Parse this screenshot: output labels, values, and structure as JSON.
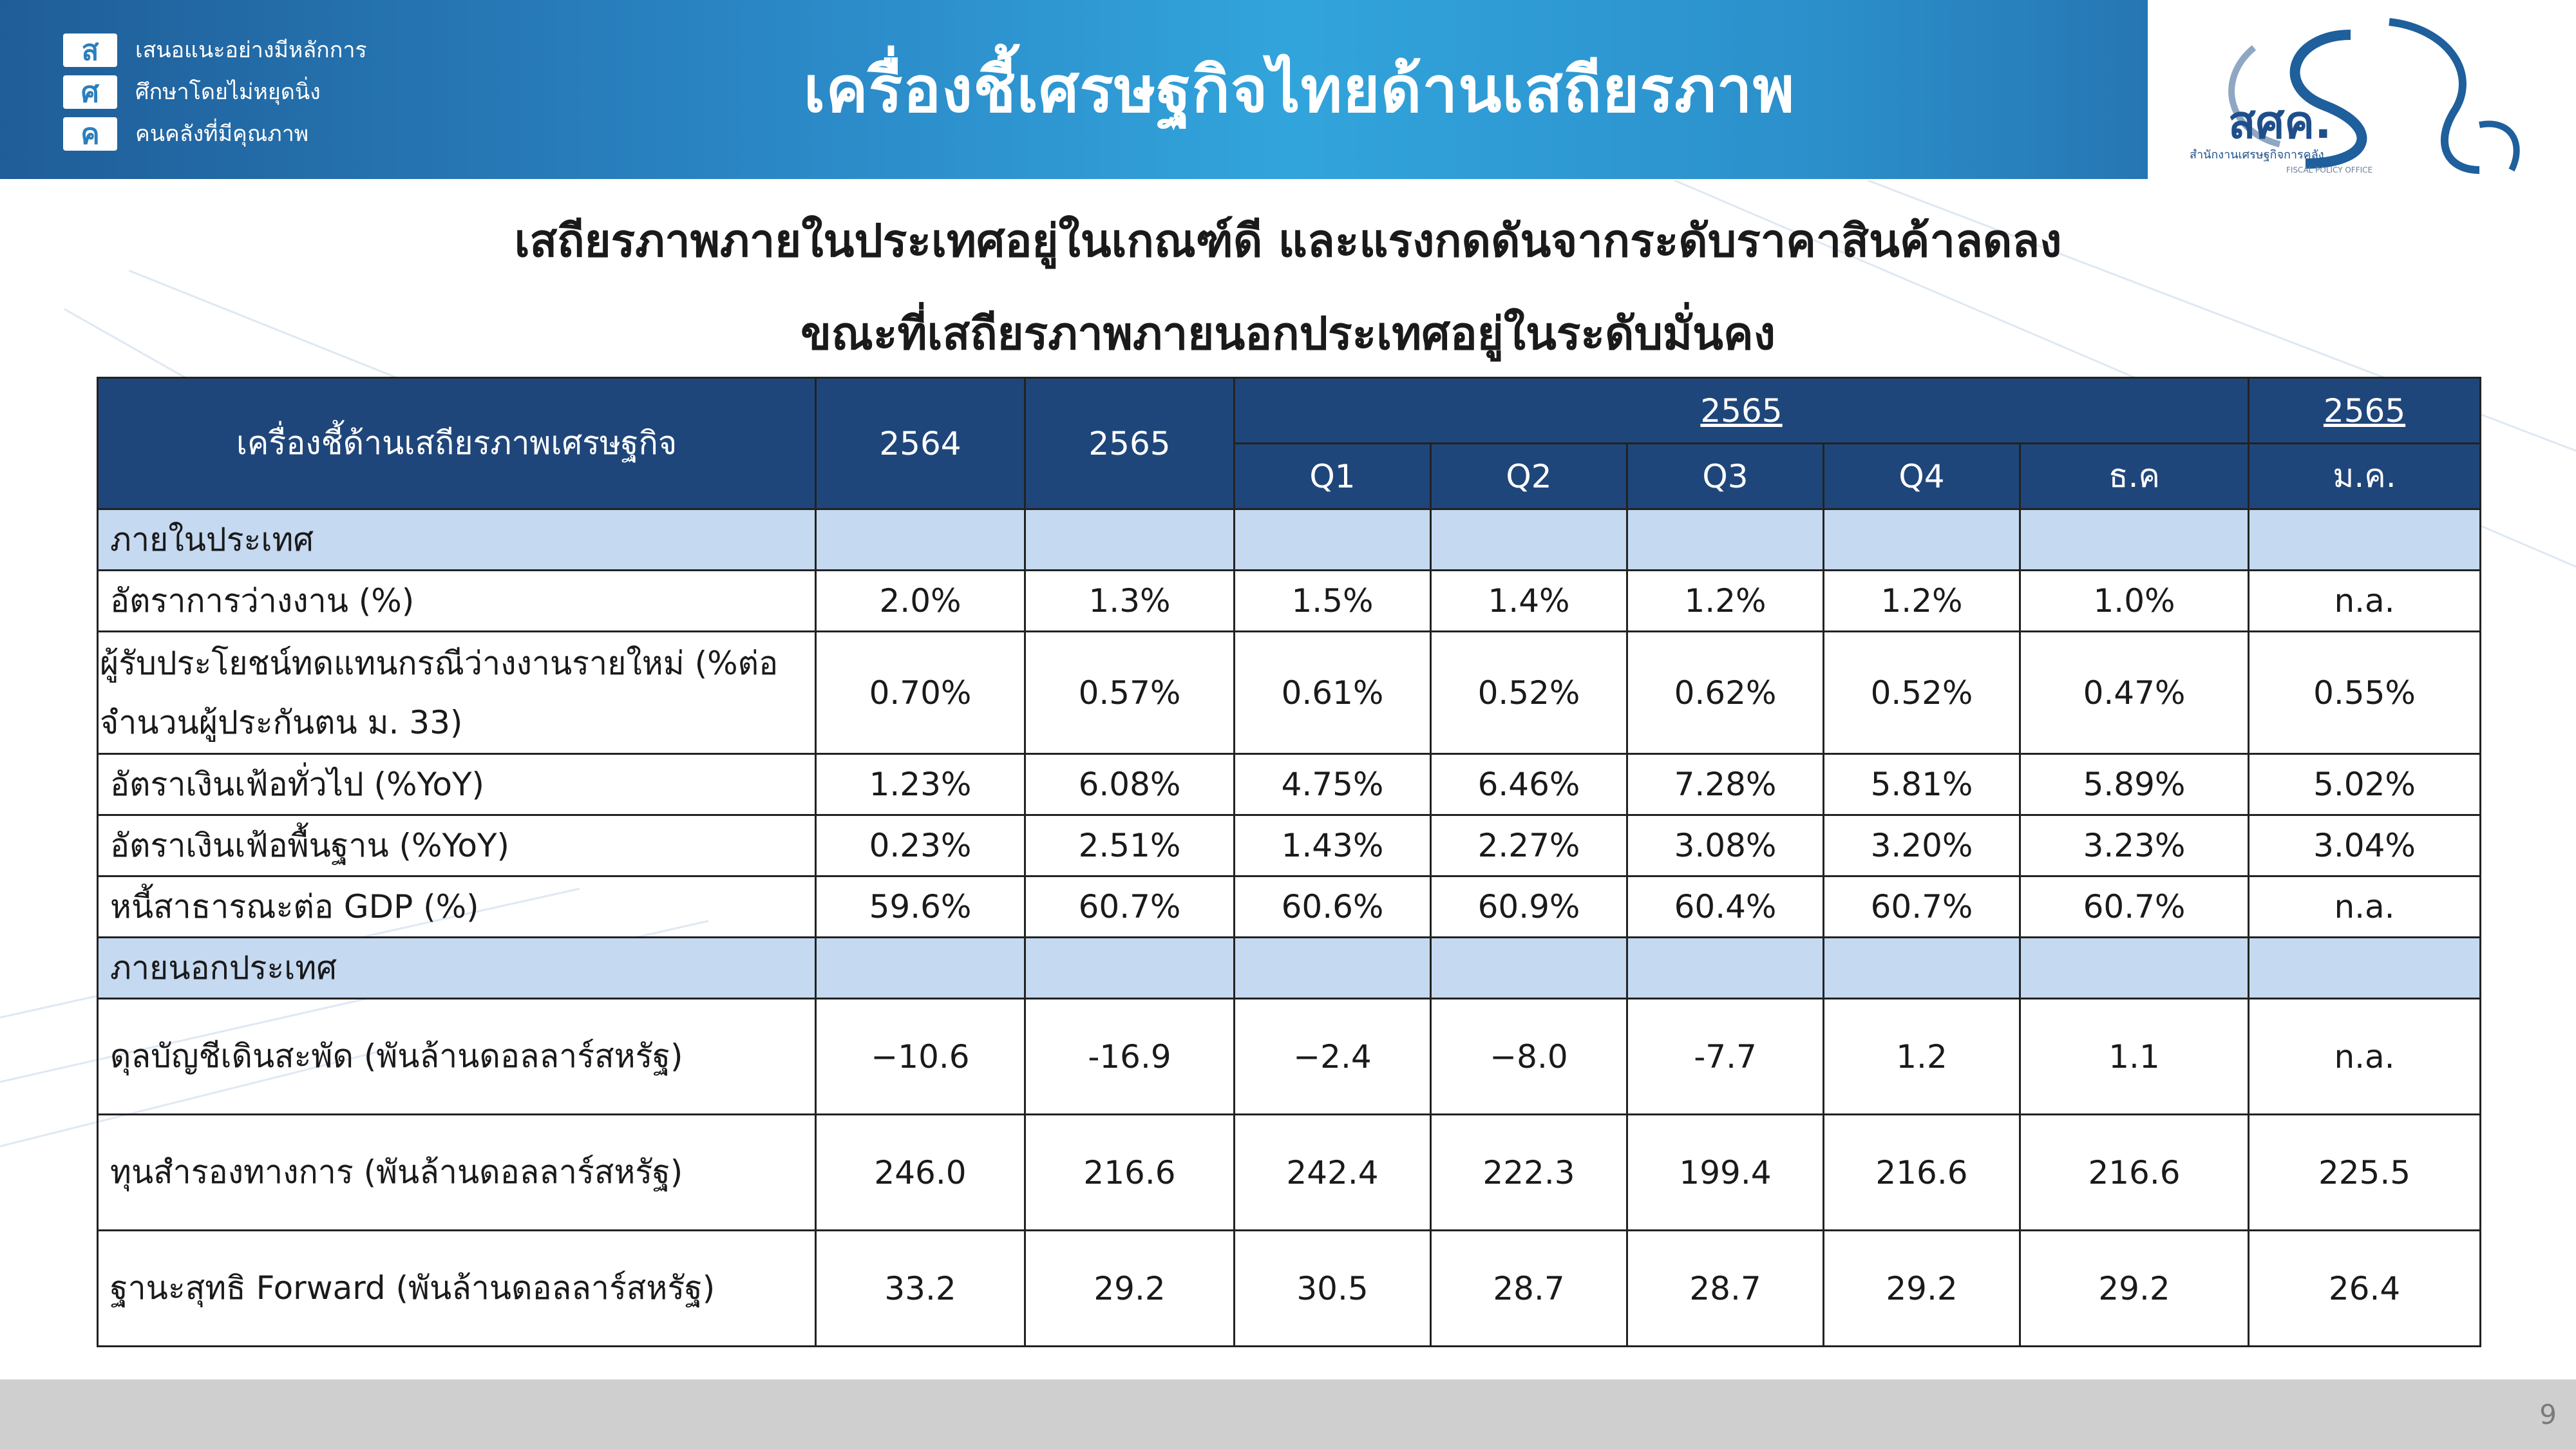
{
  "header": {
    "title": "เครื่องชี้เศรษฐกิจไทยด้านเสถียรภาพ",
    "org_logo_letters": [
      "ส",
      "ศ",
      "ค"
    ],
    "slogan": [
      "เสนอแนะอย่างมีหลักการ",
      "ศึกษาโดยไม่หยุดนิ่ง",
      "คนคลังที่มีคุณภาพ"
    ],
    "ministry_logo_text": "สศค.",
    "ministry_logo_caption": "สำนักงานเศรษฐกิจการคลัง",
    "ministry_logo_caption_en": "FISCAL POLICY OFFICE"
  },
  "subtitle": {
    "line1": "เสถียรภาพภายในประเทศอยู่ในเกณฑ์ดี และแรงกดดันจากระดับราคาสินค้าลดลง",
    "line2": "ขณะที่เสถียรภาพภายนอกประเทศอยู่ในระดับมั่นคง"
  },
  "table": {
    "header": {
      "indicator": "เครื่องชี้ด้านเสถียรภาพเศรษฐกิจ",
      "y2564": "2564",
      "y2565": "2565",
      "group_2565": "2565",
      "group_2566": "2565",
      "q1": "Q1",
      "q2": "Q2",
      "q3": "Q3",
      "q4": "Q4",
      "dec": "ธ.ค",
      "jan": "ม.ค."
    },
    "section_domestic": "ภายในประเทศ",
    "section_external": "ภายนอกประเทศ",
    "rows": [
      {
        "label": "อัตราการว่างงาน (%)",
        "values": [
          "2.0%",
          "1.3%",
          "1.5%",
          "1.4%",
          "1.2%",
          "1.2%",
          "1.0%",
          "n.a."
        ]
      },
      {
        "label_line1": "ผู้รับประโยชน์ทดแทนกรณีว่างงานรายใหม่ (%ต่อ",
        "label_line2": "จำนวนผู้ประกันตน ม. 33)",
        "values": [
          "0.70%",
          "0.57%",
          "0.61%",
          "0.52%",
          "0.62%",
          "0.52%",
          "0.47%",
          "0.55%"
        ]
      },
      {
        "label": "อัตราเงินเฟ้อทั่วไป  (%YoY)",
        "values": [
          "1.23%",
          "6.08%",
          "4.75%",
          "6.46%",
          "7.28%",
          "5.81%",
          "5.89%",
          "5.02%"
        ]
      },
      {
        "label": "อัตราเงินเฟ้อพื้นฐาน (%YoY)",
        "values": [
          "0.23%",
          "2.51%",
          "1.43%",
          "2.27%",
          "3.08%",
          "3.20%",
          "3.23%",
          "3.04%"
        ]
      },
      {
        "label": "หนี้สาธารณะต่อ GDP (%)",
        "values": [
          "59.6%",
          "60.7%",
          "60.6%",
          "60.9%",
          "60.4%",
          "60.7%",
          "60.7%",
          "n.a."
        ]
      }
    ],
    "external_rows": [
      {
        "label": "ดุลบัญชีเดินสะพัด (พันล้านดอลลาร์สหรัฐ)",
        "values": [
          "−10.6",
          "-16.9",
          "−2.4",
          "−8.0",
          "-7.7",
          "1.2",
          "1.1",
          "n.a."
        ]
      },
      {
        "label": "ทุนสำรองทางการ (พันล้านดอลลาร์สหรัฐ)",
        "values": [
          "246.0",
          "216.6",
          "242.4",
          "222.3",
          "199.4",
          "216.6",
          "216.6",
          "225.5"
        ]
      },
      {
        "label": "ฐานะสุทธิ Forward (พันล้านดอลลาร์สหรัฐ)",
        "values": [
          "33.2",
          "29.2",
          "30.5",
          "28.7",
          "28.7",
          "29.2",
          "29.2",
          "26.4"
        ]
      }
    ]
  },
  "footer": {
    "page_number": "9"
  }
}
